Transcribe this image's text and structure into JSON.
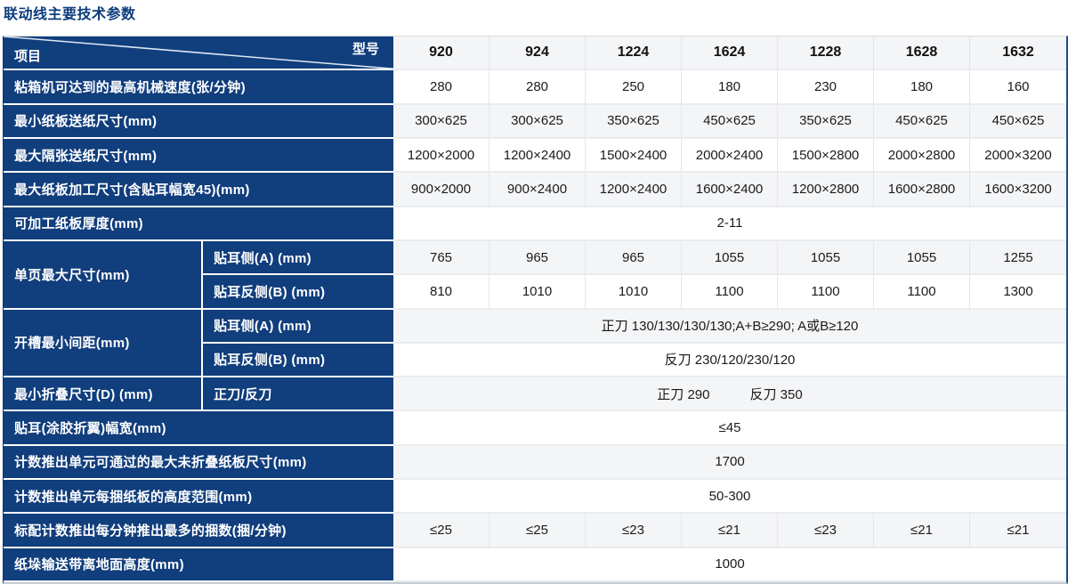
{
  "page_title": "联动线主要技术参数",
  "colors": {
    "header_blue": "#113e7d",
    "title_blue": "#0c3c7c",
    "row_tint": "#f4f5f7"
  },
  "table": {
    "corner": {
      "item_label": "项目",
      "model_label": "型号"
    },
    "models": [
      "920",
      "924",
      "1224",
      "1624",
      "1228",
      "1628",
      "1632"
    ],
    "rows": [
      {
        "label": "粘箱机可达到的最高机械速度(张/分钟)",
        "values": [
          "280",
          "280",
          "250",
          "180",
          "230",
          "180",
          "160"
        ]
      },
      {
        "label": "最小纸板送纸尺寸(mm)",
        "values": [
          "300×625",
          "300×625",
          "350×625",
          "450×625",
          "350×625",
          "450×625",
          "450×625"
        ]
      },
      {
        "label": "最大隔张送纸尺寸(mm)",
        "values": [
          "1200×2000",
          "1200×2400",
          "1500×2400",
          "2000×2400",
          "1500×2800",
          "2000×2800",
          "2000×3200"
        ]
      },
      {
        "label": "最大纸板加工尺寸(含贴耳幅宽45)(mm)",
        "values": [
          "900×2000",
          "900×2400",
          "1200×2400",
          "1600×2400",
          "1200×2800",
          "1600×2800",
          "1600×3200"
        ]
      },
      {
        "label": "可加工纸板厚度(mm)",
        "span": "2-11"
      },
      {
        "label": "单页最大尺寸(mm)",
        "subrows": [
          {
            "sublabel": "贴耳侧(A) (mm)",
            "values": [
              "765",
              "965",
              "965",
              "1055",
              "1055",
              "1055",
              "1255"
            ]
          },
          {
            "sublabel": "贴耳反侧(B) (mm)",
            "values": [
              "810",
              "1010",
              "1010",
              "1100",
              "1100",
              "1100",
              "1300"
            ]
          }
        ]
      },
      {
        "label": "开槽最小间距(mm)",
        "subrows": [
          {
            "sublabel": "贴耳侧(A) (mm)",
            "span": "正刀 130/130/130/130;A+B≥290; A或B≥120"
          },
          {
            "sublabel": "贴耳反侧(B) (mm)",
            "span": "反刀 230/120/230/120"
          }
        ]
      },
      {
        "label": "最小折叠尺寸(D) (mm)",
        "subrows": [
          {
            "sublabel": "正刀/反刀",
            "span": "正刀 290　　　反刀 350"
          }
        ]
      },
      {
        "label": "贴耳(涂胶折翼)幅宽(mm)",
        "span": "≤45"
      },
      {
        "label": "计数推出单元可通过的最大未折叠纸板尺寸(mm)",
        "span": "1700"
      },
      {
        "label": "计数推出单元每捆纸板的高度范围(mm)",
        "span": "50-300"
      },
      {
        "label": "标配计数推出每分钟推出最多的捆数(捆/分钟)",
        "values": [
          "≤25",
          "≤25",
          "≤23",
          "≤21",
          "≤23",
          "≤21",
          "≤21"
        ]
      },
      {
        "label": "纸垛输送带离地面高度(mm)",
        "span": "1000"
      }
    ]
  }
}
